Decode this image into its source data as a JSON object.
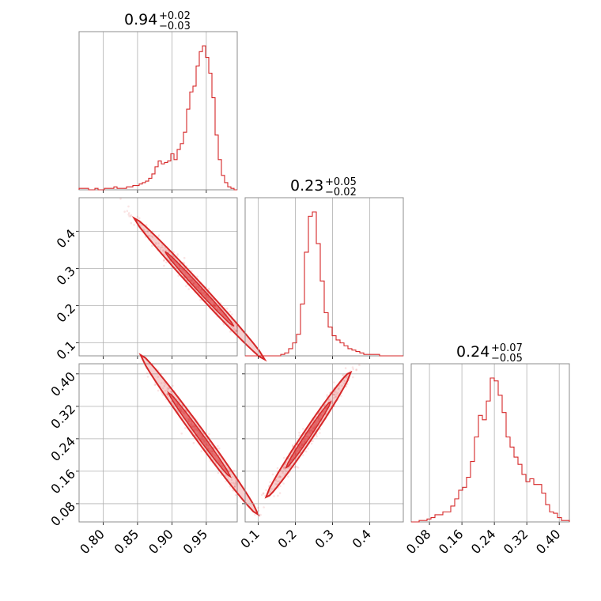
{
  "colors": {
    "accent": "#d62728",
    "grid": "#b0b0b0",
    "frame": "#8c8c8c"
  },
  "chart_data": {
    "type": "corner",
    "titles": [
      {
        "value": "0.94",
        "plus": "+0.02",
        "minus": "−0.03"
      },
      {
        "value": "0.23",
        "plus": "+0.05",
        "minus": "−0.02"
      },
      {
        "value": "0.24",
        "plus": "+0.07",
        "minus": "−0.05"
      }
    ],
    "params": [
      {
        "range": [
          0.765,
          0.995
        ],
        "ticks": [
          0.8,
          0.85,
          0.9,
          0.95
        ],
        "tick_labels": [
          "0.80",
          "0.85",
          "0.90",
          "0.95"
        ]
      },
      {
        "range": [
          0.065,
          0.49
        ],
        "ticks": [
          0.1,
          0.2,
          0.3,
          0.4
        ],
        "tick_labels": [
          "0.1",
          "0.2",
          "0.3",
          "0.4"
        ]
      },
      {
        "range": [
          0.035,
          0.425
        ],
        "ticks": [
          0.08,
          0.16,
          0.24,
          0.32,
          0.4
        ],
        "tick_labels": [
          "0.08",
          "0.16",
          "0.24",
          "0.32",
          "0.40"
        ]
      }
    ],
    "histograms": [
      {
        "bins": [
          0.765,
          0.995
        ],
        "values": [
          0.01,
          0.01,
          0.01,
          0.0,
          0.0,
          0.01,
          0.0,
          0.0,
          0.01,
          0.01,
          0.01,
          0.02,
          0.01,
          0.01,
          0.01,
          0.02,
          0.02,
          0.03,
          0.03,
          0.04,
          0.05,
          0.06,
          0.08,
          0.11,
          0.16,
          0.2,
          0.18,
          0.19,
          0.2,
          0.25,
          0.21,
          0.28,
          0.32,
          0.4,
          0.56,
          0.68,
          0.72,
          0.86,
          0.96,
          1.0,
          0.92,
          0.81,
          0.64,
          0.38,
          0.21,
          0.1,
          0.05,
          0.02,
          0.01,
          0.0
        ]
      },
      {
        "bins": [
          0.065,
          0.49
        ],
        "values": [
          0.0,
          0.0,
          0.0,
          0.0,
          0.0,
          0.0,
          0.0,
          0.0,
          0.0,
          0.01,
          0.02,
          0.05,
          0.09,
          0.15,
          0.36,
          0.72,
          0.97,
          1.0,
          0.78,
          0.52,
          0.3,
          0.2,
          0.14,
          0.11,
          0.09,
          0.07,
          0.05,
          0.04,
          0.03,
          0.02,
          0.01,
          0.01,
          0.01,
          0.01,
          0.0,
          0.0,
          0.0,
          0.0,
          0.0,
          0.0
        ]
      },
      {
        "bins": [
          0.035,
          0.425
        ],
        "values": [
          0.0,
          0.0,
          0.01,
          0.01,
          0.02,
          0.03,
          0.05,
          0.05,
          0.07,
          0.07,
          0.11,
          0.16,
          0.22,
          0.24,
          0.31,
          0.42,
          0.59,
          0.74,
          0.71,
          0.84,
          1.0,
          0.98,
          0.88,
          0.76,
          0.59,
          0.52,
          0.45,
          0.4,
          0.33,
          0.28,
          0.3,
          0.26,
          0.26,
          0.2,
          0.12,
          0.07,
          0.06,
          0.03,
          0.01,
          0.01
        ]
      }
    ],
    "pairs": [
      {
        "x_param": 0,
        "y_param": 1,
        "mean": [
          0.94,
          0.245
        ],
        "slope": -2.0,
        "spread": 0.05,
        "width": 0.012
      },
      {
        "x_param": 0,
        "y_param": 2,
        "mean": [
          0.94,
          0.25
        ],
        "slope": -2.3,
        "spread": 0.045,
        "width": 0.014
      },
      {
        "x_param": 1,
        "y_param": 2,
        "mean": [
          0.235,
          0.25
        ],
        "slope": 1.35,
        "spread": 0.06,
        "width": 0.014
      }
    ]
  }
}
